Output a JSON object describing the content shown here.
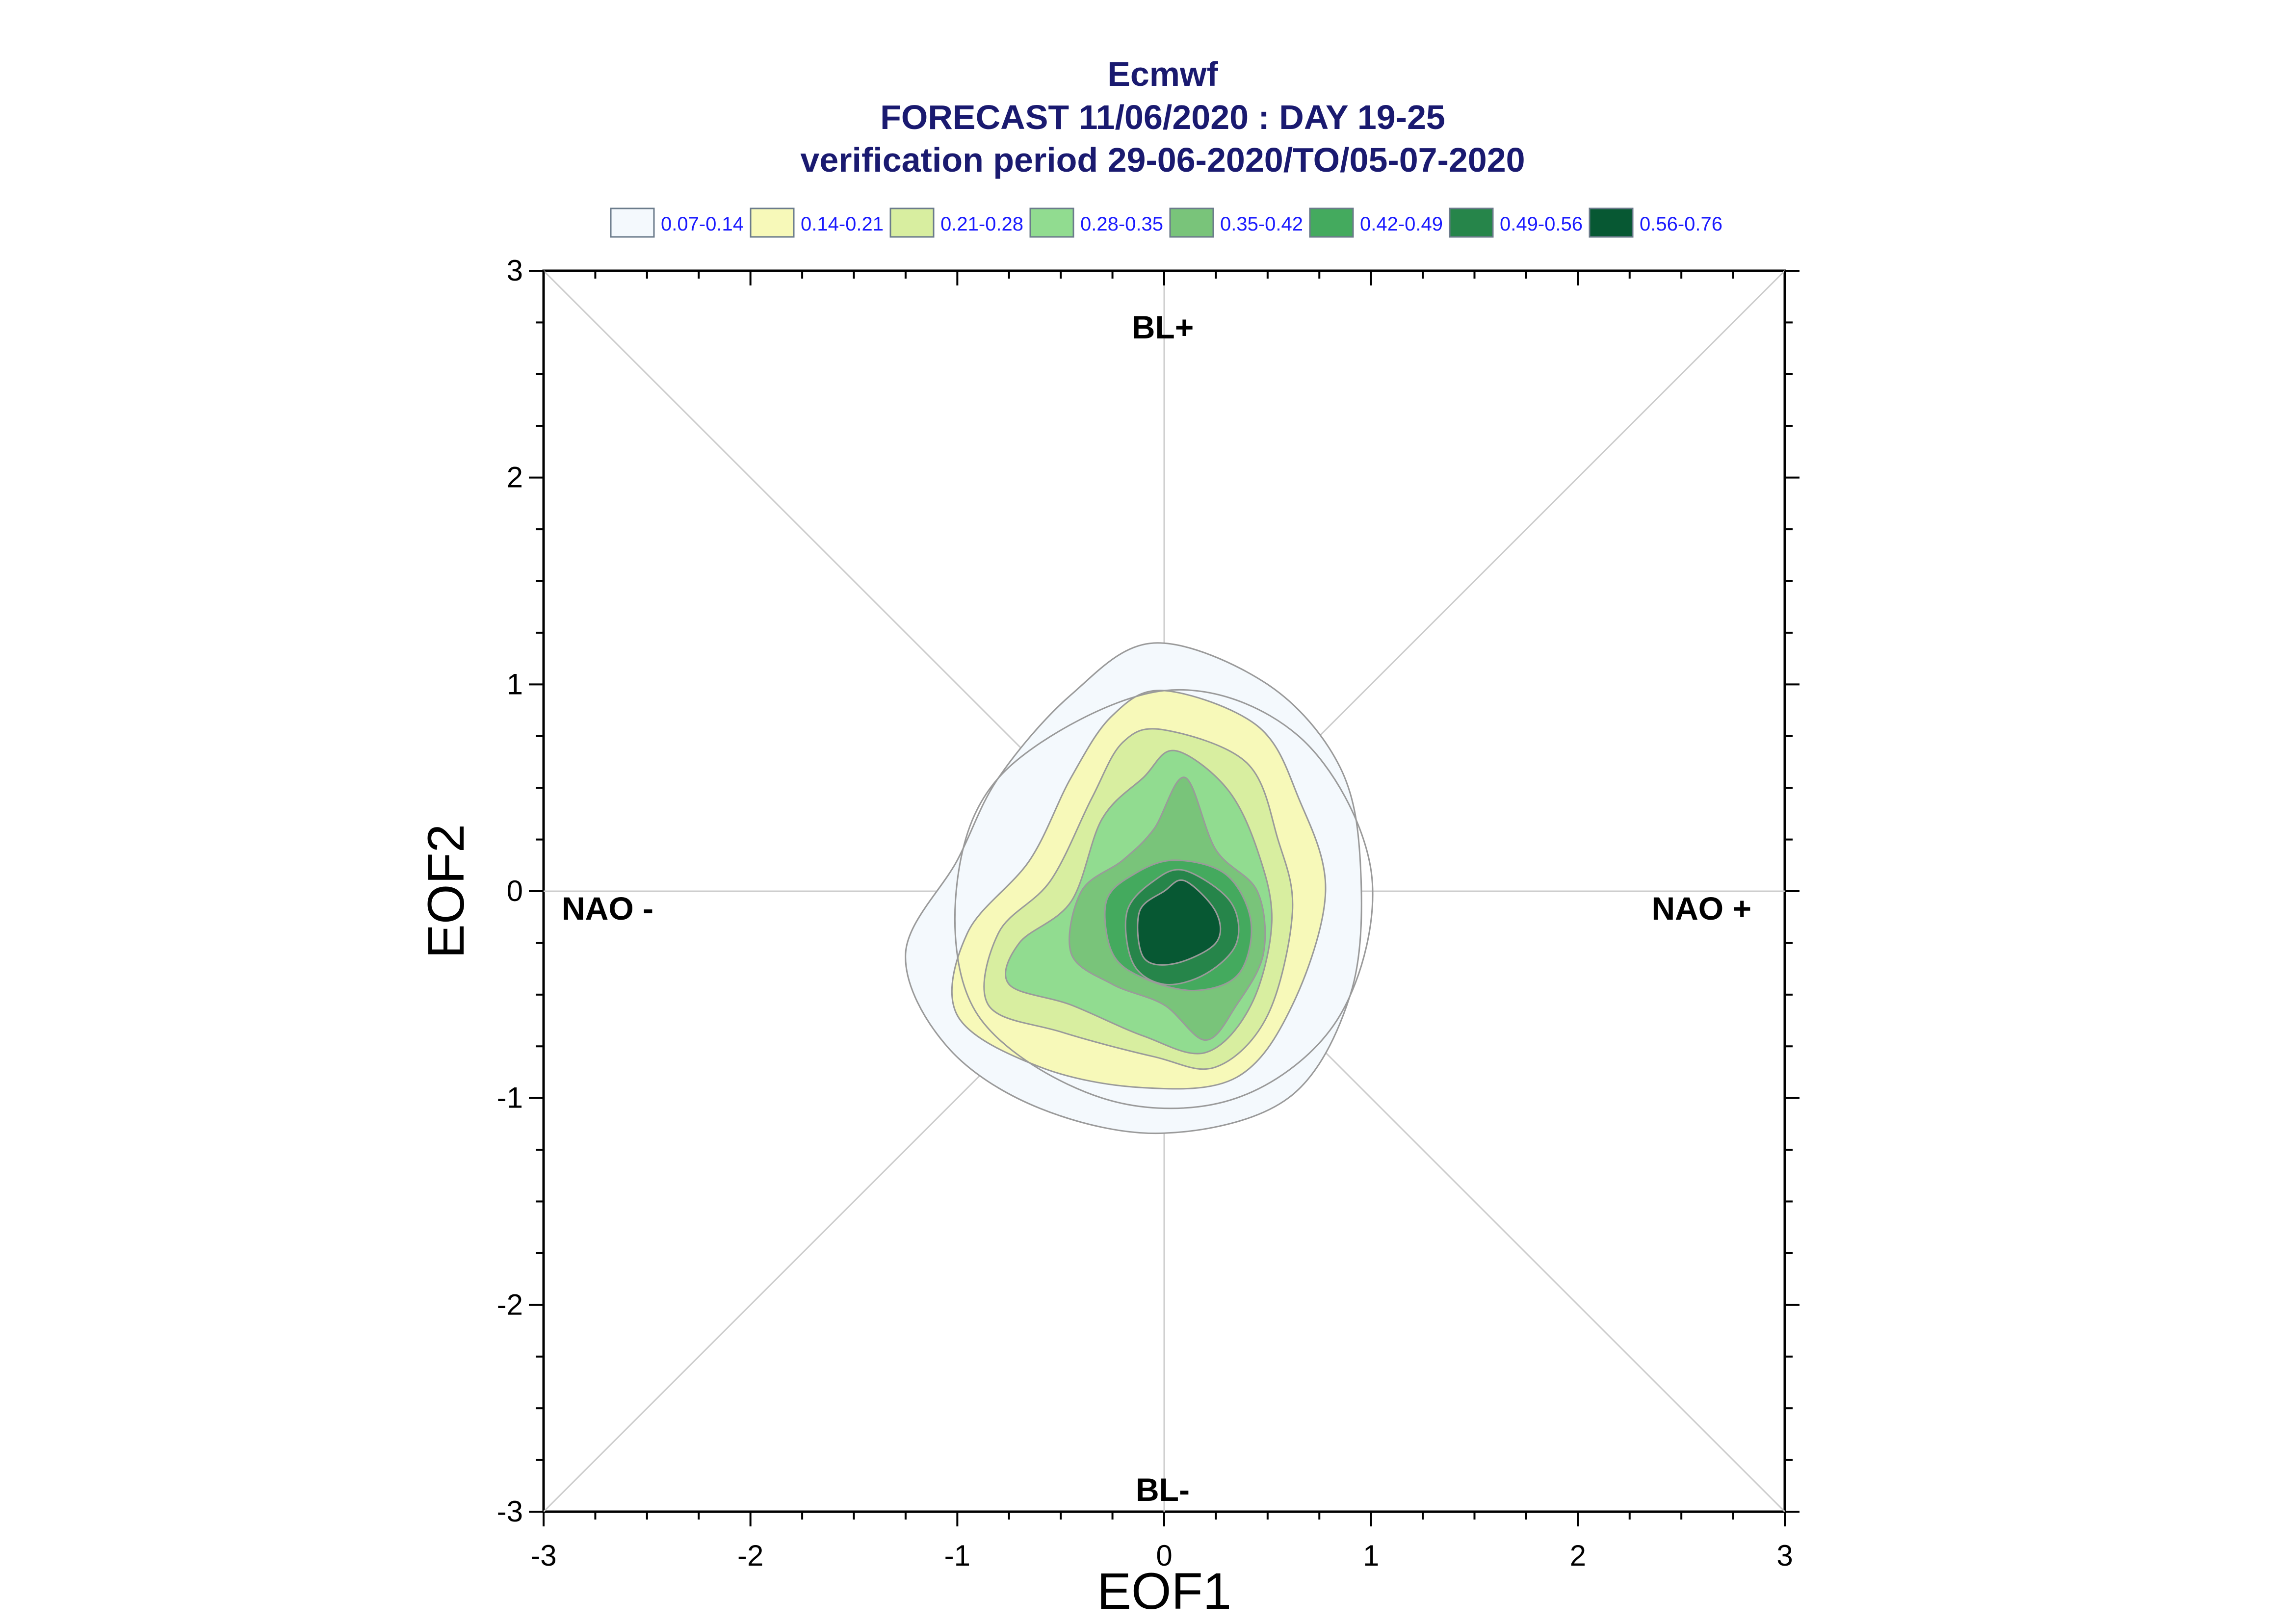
{
  "chart_data": {
    "type": "heatmap",
    "title_lines": [
      "Ecmwf",
      "FORECAST 11/06/2020 : DAY 19-25",
      "verification period 29-06-2020/TO/05-07-2020"
    ],
    "xlabel": "EOF1",
    "ylabel": "EOF2",
    "xlim": [
      -3,
      3
    ],
    "ylim": [
      -3,
      3
    ],
    "xticks": [
      "-3",
      "-2",
      "-1",
      "0",
      "1",
      "2",
      "3"
    ],
    "yticks": [
      "3",
      "2",
      "1",
      "0",
      "-1",
      "-2",
      "-3"
    ],
    "grid": "diagonals and zero lines",
    "legend_position": "top",
    "legend": [
      {
        "label": "0.07-0.14",
        "color": "#f4f9fd"
      },
      {
        "label": "0.14-0.21",
        "color": "#f7f9b9"
      },
      {
        "label": "0.21-0.28",
        "color": "#d8eea0"
      },
      {
        "label": "0.28-0.35",
        "color": "#91dc90"
      },
      {
        "label": "0.35-0.42",
        "color": "#79c47a"
      },
      {
        "label": "0.42-0.49",
        "color": "#44aa5e"
      },
      {
        "label": "0.49-0.56",
        "color": "#26854a"
      },
      {
        "label": "0.56-0.76",
        "color": "#075833"
      }
    ],
    "annotations": {
      "top": "BL+",
      "bottom": "BL-",
      "left": "NAO -",
      "right": "NAO +"
    },
    "density_levels": [
      {
        "level": "0.07-0.14",
        "center": [
          -0.05,
          -0.2
        ],
        "color": "#f4f9fd"
      },
      {
        "level": "0.14-0.21",
        "center": [
          -0.05,
          -0.2
        ],
        "color": "#f7f9b9"
      },
      {
        "level": "0.21-0.28",
        "center": [
          -0.05,
          -0.2
        ],
        "color": "#d8eea0"
      },
      {
        "level": "0.28-0.35",
        "center": [
          -0.05,
          -0.2
        ],
        "color": "#91dc90"
      },
      {
        "level": "0.35-0.42",
        "center": [
          0.05,
          -0.25
        ],
        "color": "#79c47a"
      },
      {
        "level": "0.42-0.49",
        "center": [
          0.1,
          -0.2
        ],
        "color": "#44aa5e"
      },
      {
        "level": "0.49-0.56",
        "center": [
          0.1,
          -0.2
        ],
        "color": "#26854a"
      },
      {
        "level": "0.56-0.76",
        "center": [
          0.1,
          -0.15
        ],
        "color": "#075833"
      }
    ]
  }
}
